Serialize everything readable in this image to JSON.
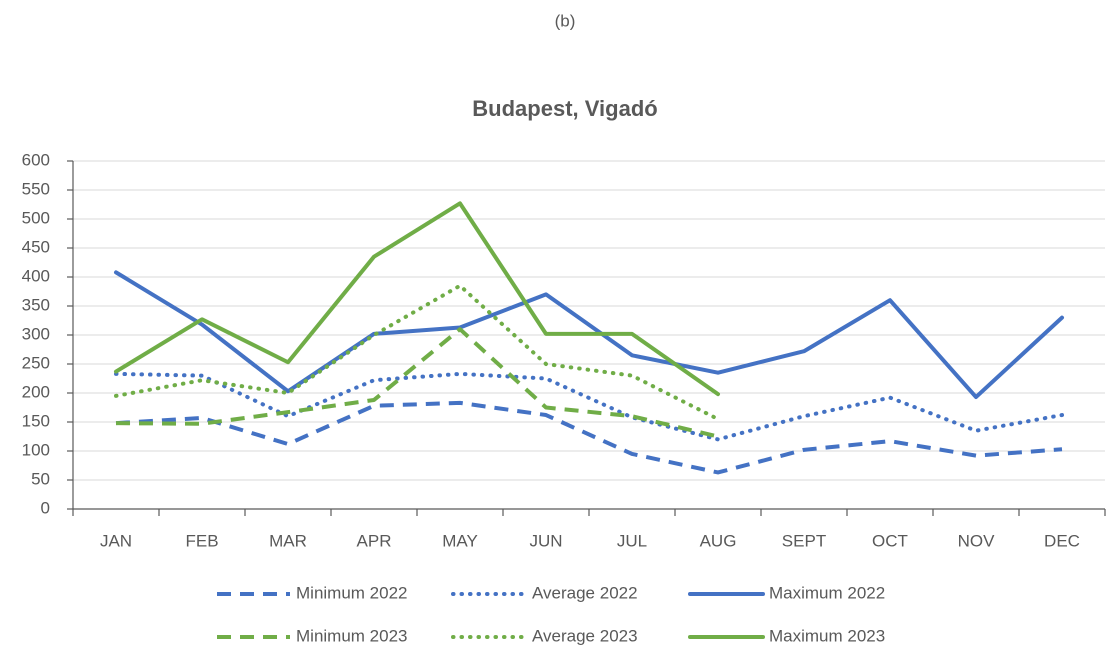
{
  "chart_data": {
    "type": "line",
    "panel_label": "(b)",
    "title": "Budapest, Vigadó",
    "categories": [
      "JAN",
      "FEB",
      "MAR",
      "APR",
      "MAY",
      "JUN",
      "JUL",
      "AUG",
      "SEPT",
      "OCT",
      "NOV",
      "DEC"
    ],
    "series": [
      {
        "name": "Minimum 2022",
        "color": "#4472c4",
        "dash": "dashed",
        "values": [
          148,
          157,
          112,
          178,
          183,
          162,
          95,
          63,
          102,
          117,
          92,
          103
        ]
      },
      {
        "name": "Average 2022",
        "color": "#4472c4",
        "dash": "dotted",
        "values": [
          233,
          230,
          160,
          222,
          233,
          225,
          158,
          120,
          160,
          192,
          135,
          162
        ]
      },
      {
        "name": "Maximum 2022",
        "color": "#4472c4",
        "dash": "solid",
        "values": [
          408,
          318,
          203,
          302,
          313,
          370,
          265,
          235,
          272,
          360,
          193,
          330
        ]
      },
      {
        "name": "Minimum 2023",
        "color": "#70ad47",
        "dash": "dashed",
        "values": [
          148,
          147,
          167,
          188,
          310,
          175,
          160,
          125,
          null,
          null,
          null,
          null
        ]
      },
      {
        "name": "Average 2023",
        "color": "#70ad47",
        "dash": "dotted",
        "values": [
          195,
          222,
          200,
          300,
          385,
          250,
          230,
          155,
          null,
          null,
          null,
          null
        ]
      },
      {
        "name": "Maximum 2023",
        "color": "#70ad47",
        "dash": "solid",
        "values": [
          237,
          327,
          253,
          435,
          527,
          302,
          302,
          198,
          null,
          null,
          null,
          null
        ]
      }
    ],
    "ylim": [
      0,
      600
    ],
    "yticks": [
      0,
      50,
      100,
      150,
      200,
      250,
      300,
      350,
      400,
      450,
      500,
      550,
      600
    ],
    "grid": true,
    "legend": "bottom"
  }
}
